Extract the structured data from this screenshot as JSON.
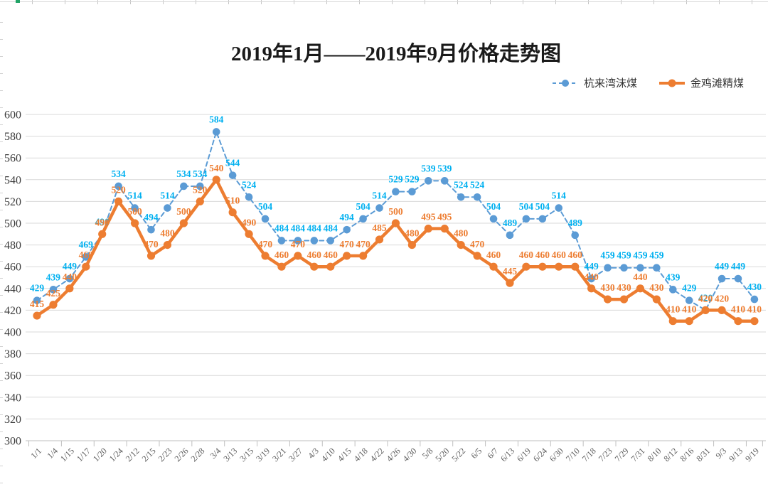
{
  "title": "2019年1月——2019年9月价格走势图",
  "colors": {
    "series1_line": "#5B9BD5",
    "series1_label": "#00B0F0",
    "series2_line": "#ED7D31",
    "series2_label": "#ED7D31",
    "gridline": "#D9D9D9",
    "axis_line": "#BFBFBF",
    "excel_handle_green": "#21A366"
  },
  "chart_data": {
    "type": "line",
    "title": "2019年1月——2019年9月价格走势图",
    "categories": [
      "1/1",
      "1/4",
      "1/15",
      "1/17",
      "1/20",
      "1/24",
      "2/12",
      "2/15",
      "2/23",
      "2/26",
      "2/28",
      "3/4",
      "3/13",
      "3/15",
      "3/19",
      "3/21",
      "3/27",
      "4/3",
      "4/10",
      "4/15",
      "4/18",
      "4/22",
      "4/26",
      "4/30",
      "5/8",
      "5/20",
      "5/22",
      "6/5",
      "6/7",
      "6/13",
      "6/19",
      "6/24",
      "6/30",
      "7/10",
      "7/18",
      "7/23",
      "7/29",
      "7/31",
      "8/10",
      "8/12",
      "8/16",
      "8/31",
      "9/3",
      "9/13",
      "9/19"
    ],
    "series": [
      {
        "name": "杭来湾沫煤",
        "values": [
          429,
          439,
          449,
          469,
          490,
          534,
          514,
          494,
          514,
          534,
          534,
          584,
          544,
          524,
          504,
          484,
          484,
          484,
          484,
          494,
          504,
          514,
          529,
          529,
          539,
          539,
          524,
          524,
          504,
          489,
          504,
          504,
          514,
          489,
          449,
          459,
          459,
          459,
          459,
          439,
          429,
          420,
          449,
          449,
          430
        ],
        "color": "#5B9BD5",
        "label_color": "#00B0F0",
        "dashed": true
      },
      {
        "name": "金鸡滩精煤",
        "values": [
          415,
          425,
          440,
          460,
          490,
          520,
          500,
          470,
          480,
          500,
          520,
          540,
          510,
          490,
          470,
          460,
          470,
          460,
          460,
          470,
          470,
          485,
          500,
          480,
          495,
          495,
          480,
          470,
          460,
          445,
          460,
          460,
          460,
          460,
          440,
          430,
          430,
          440,
          430,
          410,
          410,
          420,
          420,
          410,
          410
        ],
        "color": "#ED7D31",
        "label_color": "#ED7D31",
        "dashed": false
      }
    ],
    "ylim": [
      300,
      600
    ],
    "ytick_step": 20,
    "yticks": [
      300,
      320,
      340,
      360,
      380,
      400,
      420,
      440,
      460,
      480,
      500,
      520,
      540,
      560,
      580,
      600
    ],
    "grid": true,
    "data_labels": true,
    "legend_position": "top-right",
    "x_label_rotation": -45
  }
}
